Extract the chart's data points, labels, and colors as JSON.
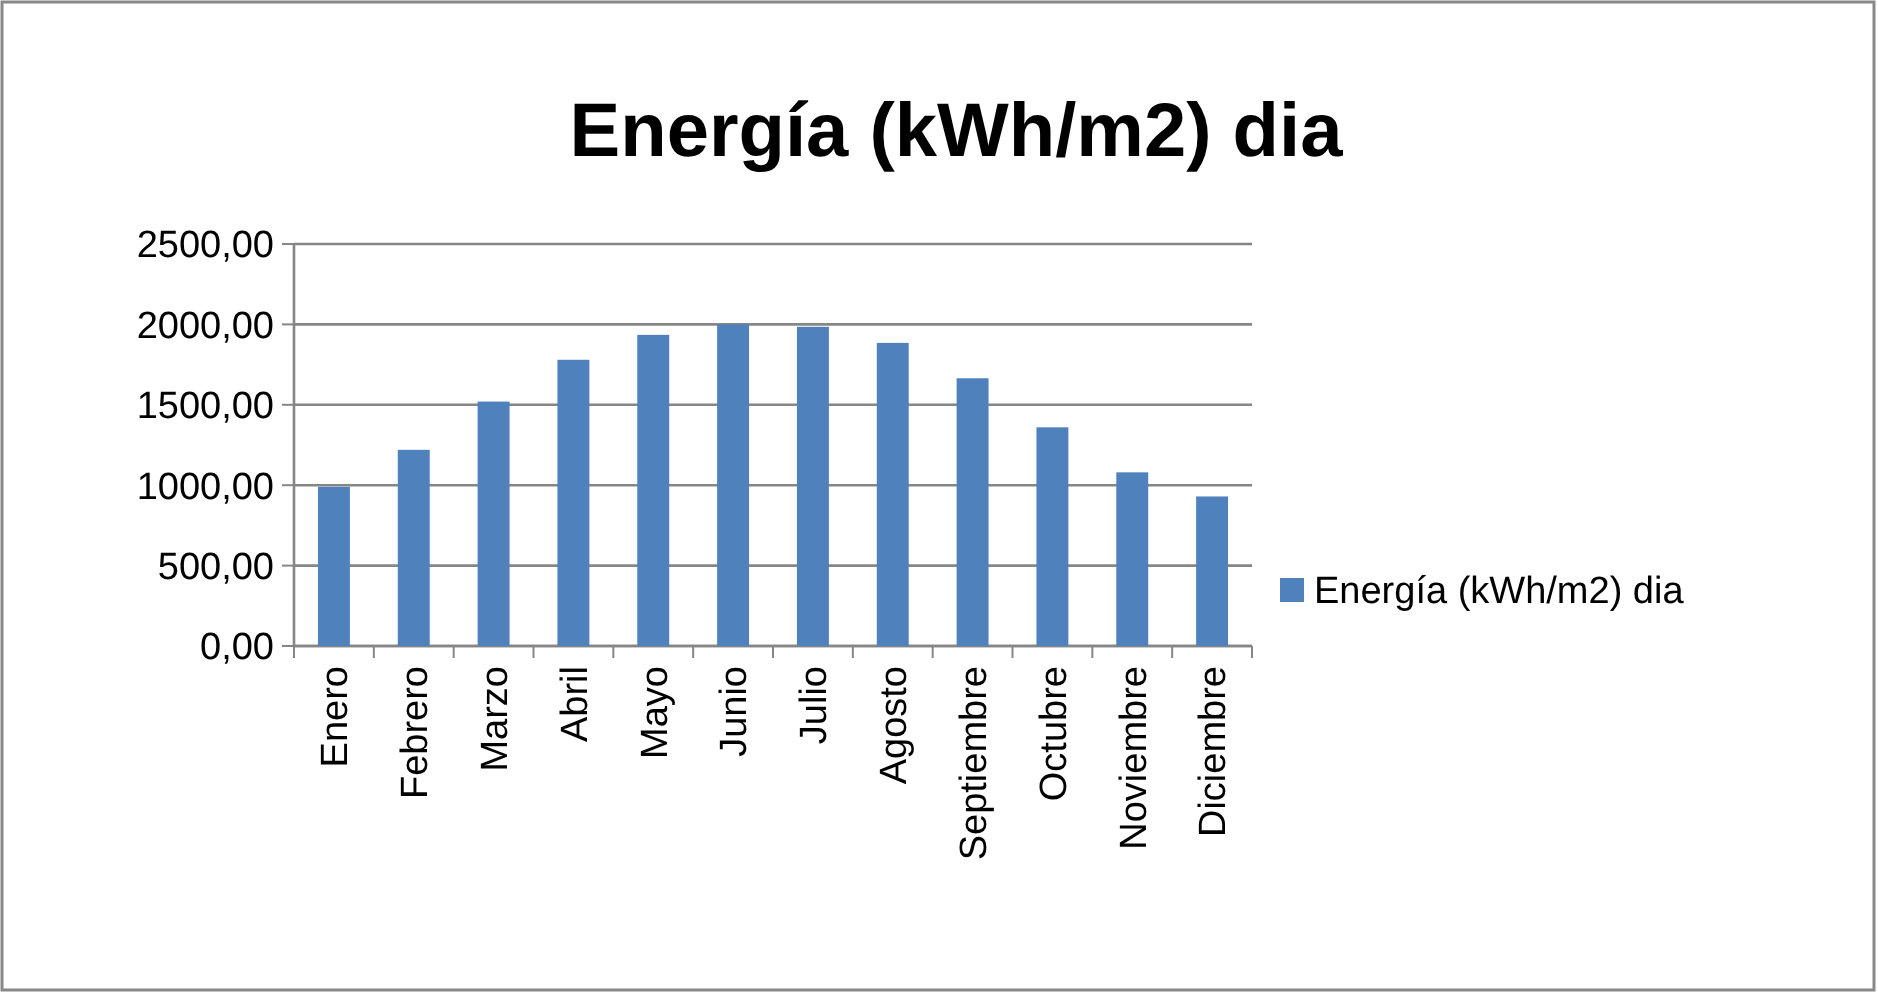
{
  "chart_data": {
    "type": "bar",
    "title": "Energía (kWh/m2) dia",
    "categories": [
      "Enero",
      "Febrero",
      "Marzo",
      "Abril",
      "Mayo",
      "Junio",
      "Julio",
      "Agosto",
      "Septiembre",
      "Octubre",
      "Noviembre",
      "Diciembre"
    ],
    "series": [
      {
        "name": "Energía (kWh/m2) dia",
        "color": "#4f81bd",
        "values": [
          990,
          1220,
          1520,
          1780,
          1935,
          2000,
          1985,
          1885,
          1665,
          1360,
          1080,
          930
        ]
      }
    ],
    "ylim": [
      0,
      2500
    ],
    "yticks": [
      {
        "value": 0,
        "label": "0,00"
      },
      {
        "value": 500,
        "label": "500,00"
      },
      {
        "value": 1000,
        "label": "1000,00"
      },
      {
        "value": 1500,
        "label": "1500,00"
      },
      {
        "value": 2000,
        "label": "2000,00"
      },
      {
        "value": 2500,
        "label": "2500,00"
      }
    ],
    "grid": "y",
    "legend": "right"
  }
}
